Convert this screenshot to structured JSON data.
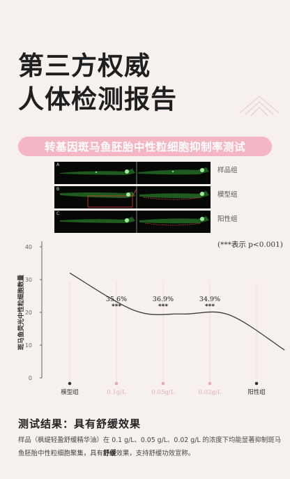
{
  "hero": {
    "line1": "第三方权威",
    "line2": "人体检测报告"
  },
  "banner": {
    "text": "转基因斑马鱼胚胎中性粒细胞抑制率测试"
  },
  "fish_images": {
    "rows": [
      {
        "letter": "A",
        "label": "样品组"
      },
      {
        "letter": "B",
        "label": "模型组"
      },
      {
        "letter": "C",
        "label": "阳性组"
      }
    ]
  },
  "legend_note": "(***表示 p<0.001)",
  "chart_data": {
    "type": "line",
    "ylabel": "斑马鱼荧光中性粒细胞数量",
    "ylim": [
      0,
      40
    ],
    "yticks": [
      "0",
      "10",
      "20",
      "30",
      "40"
    ],
    "categories": [
      "模型组",
      "0.1g/L",
      "0.05g/L",
      "0.02g/L",
      "阳性组"
    ],
    "category_colors": [
      "#333333",
      "#e8a9b7",
      "#e8a9b7",
      "#e8a9b7",
      "#333333"
    ],
    "curve": [
      {
        "x": 0,
        "y": 32
      },
      {
        "x": 1.4,
        "y": 20.5
      },
      {
        "x": 2.4,
        "y": 19.5
      },
      {
        "x": 3.4,
        "y": 19.3
      },
      {
        "x": 4.6,
        "y": 8.5
      }
    ],
    "annotations": [
      {
        "category": "0.1g/L",
        "percent": "35.6%",
        "sig": "***"
      },
      {
        "category": "0.05g/L",
        "percent": "36.9%",
        "sig": "***"
      },
      {
        "category": "0.02g/L",
        "percent": "34.9%",
        "sig": "***"
      }
    ]
  },
  "result": {
    "title": "测试结果：具有舒缓效果",
    "desc_part1": "样品（枫缇轻盈舒缓精华油）在 0.1 g/L、0.05 g/L、0.02 g/L 的浓度下均能显著抑制斑马鱼胚胎中性粒细胞聚集，具有",
    "desc_bold": "舒缓",
    "desc_part2": "效果，支持舒缓功效宣称。"
  }
}
